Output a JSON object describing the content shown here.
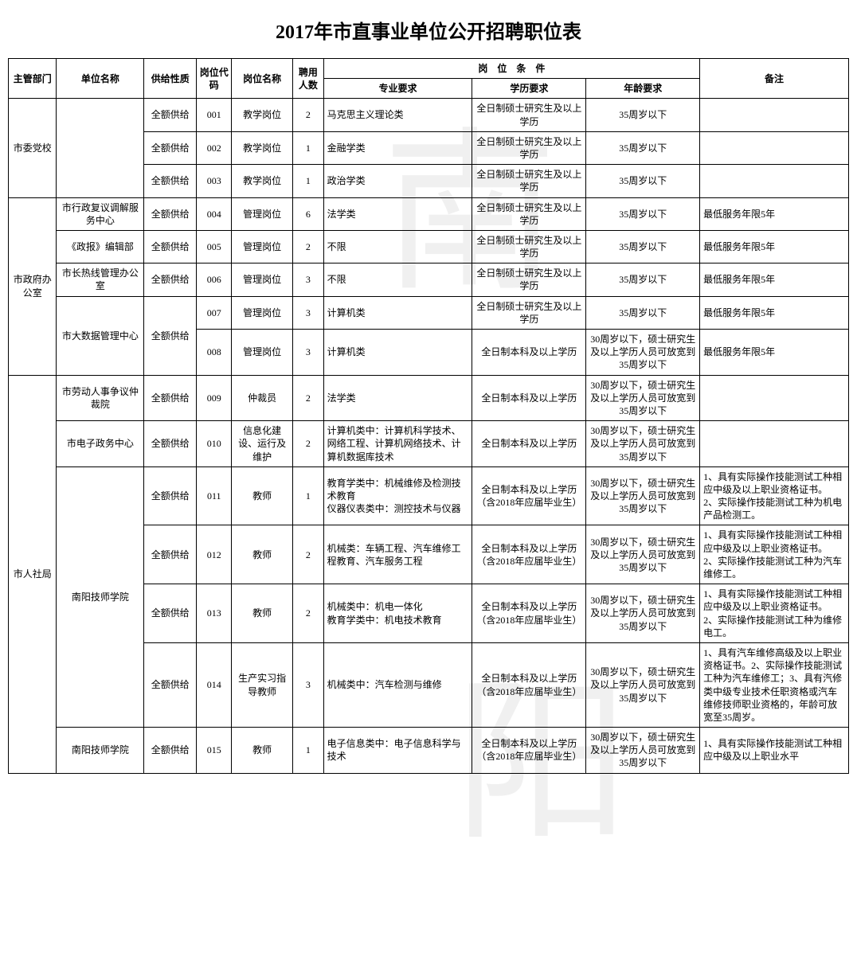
{
  "title": "2017年市直事业单位公开招聘职位表",
  "watermark": {
    "char1": "南",
    "char2": "阳"
  },
  "headers": {
    "dept": "主管部门",
    "unit": "单位名称",
    "supply": "供给性质",
    "code": "岗位代码",
    "pname": "岗位名称",
    "count": "聘用人数",
    "cond_group": "岗　位　条　件",
    "major": "专业要求",
    "edu": "学历要求",
    "age": "年龄要求",
    "note": "备注"
  },
  "groups": [
    {
      "dept": "市委党校",
      "units": [
        {
          "unit": "",
          "rows": [
            {
              "supply": "全额供给",
              "code": "001",
              "pname": "教学岗位",
              "count": "2",
              "major": "马克思主义理论类",
              "edu": "全日制硕士研究生及以上学历",
              "age": "35周岁以下",
              "note": ""
            },
            {
              "supply": "全额供给",
              "code": "002",
              "pname": "教学岗位",
              "count": "1",
              "major": "金融学类",
              "edu": "全日制硕士研究生及以上学历",
              "age": "35周岁以下",
              "note": ""
            },
            {
              "supply": "全额供给",
              "code": "003",
              "pname": "教学岗位",
              "count": "1",
              "major": "政治学类",
              "edu": "全日制硕士研究生及以上学历",
              "age": "35周岁以下",
              "note": ""
            }
          ]
        }
      ]
    },
    {
      "dept": "市政府办公室",
      "units": [
        {
          "unit": "市行政复议调解服务中心",
          "rows": [
            {
              "supply": "全额供给",
              "code": "004",
              "pname": "管理岗位",
              "count": "6",
              "major": "法学类",
              "edu": "全日制硕士研究生及以上学历",
              "age": "35周岁以下",
              "note": "最低服务年限5年"
            }
          ]
        },
        {
          "unit": "《政报》编辑部",
          "rows": [
            {
              "supply": "全额供给",
              "code": "005",
              "pname": "管理岗位",
              "count": "2",
              "major": "不限",
              "edu": "全日制硕士研究生及以上学历",
              "age": "35周岁以下",
              "note": "最低服务年限5年"
            }
          ]
        },
        {
          "unit": "市长热线管理办公室",
          "rows": [
            {
              "supply": "全额供给",
              "code": "006",
              "pname": "管理岗位",
              "count": "3",
              "major": "不限",
              "edu": "全日制硕士研究生及以上学历",
              "age": "35周岁以下",
              "note": "最低服务年限5年"
            }
          ]
        },
        {
          "unit": "市大数据管理中心",
          "supply_merged": "全额供给",
          "rows": [
            {
              "supply": "",
              "code": "007",
              "pname": "管理岗位",
              "count": "3",
              "major": "计算机类",
              "edu": "全日制硕士研究生及以上学历",
              "age": "35周岁以下",
              "note": "最低服务年限5年"
            },
            {
              "supply": "",
              "code": "008",
              "pname": "管理岗位",
              "count": "3",
              "major": "计算机类",
              "edu": "全日制本科及以上学历",
              "age": "30周岁以下，硕士研究生及以上学历人员可放宽到35周岁以下",
              "note": "最低服务年限5年"
            }
          ]
        }
      ]
    },
    {
      "dept": "市人社局",
      "units": [
        {
          "unit": "市劳动人事争议仲裁院",
          "rows": [
            {
              "supply": "全额供给",
              "code": "009",
              "pname": "仲裁员",
              "count": "2",
              "major": "法学类",
              "edu": "全日制本科及以上学历",
              "age": "30周岁以下，硕士研究生及以上学历人员可放宽到35周岁以下",
              "note": ""
            }
          ]
        },
        {
          "unit": "市电子政务中心",
          "rows": [
            {
              "supply": "全额供给",
              "code": "010",
              "pname": "信息化建设、运行及维护",
              "count": "2",
              "major": "计算机类中：计算机科学技术、网络工程、计算机网络技术、计算机数据库技术",
              "edu": "全日制本科及以上学历",
              "age": "30周岁以下，硕士研究生及以上学历人员可放宽到35周岁以下",
              "note": ""
            }
          ]
        },
        {
          "unit": "南阳技师学院",
          "rows": [
            {
              "supply": "全额供给",
              "code": "011",
              "pname": "教师",
              "count": "1",
              "major": "教育学类中：机械维修及检测技术教育\n仪器仪表类中：测控技术与仪器",
              "edu": "全日制本科及以上学历（含2018年应届毕业生）",
              "age": "30周岁以下，硕士研究生及以上学历人员可放宽到35周岁以下",
              "note": "1、具有实际操作技能测试工种相应中级及以上职业资格证书。\n2、实际操作技能测试工种为机电产品检测工。"
            },
            {
              "supply": "全额供给",
              "code": "012",
              "pname": "教师",
              "count": "2",
              "major": "机械类：车辆工程、汽车维修工程教育、汽车服务工程",
              "edu": "全日制本科及以上学历（含2018年应届毕业生）",
              "age": "30周岁以下，硕士研究生及以上学历人员可放宽到35周岁以下",
              "note": "1、具有实际操作技能测试工种相应中级及以上职业资格证书。\n2、实际操作技能测试工种为汽车维修工。"
            },
            {
              "supply": "全额供给",
              "code": "013",
              "pname": "教师",
              "count": "2",
              "major": "机械类中：机电一体化\n教育学类中：机电技术教育",
              "edu": "全日制本科及以上学历（含2018年应届毕业生）",
              "age": "30周岁以下，硕士研究生及以上学历人员可放宽到35周岁以下",
              "note": "1、具有实际操作技能测试工种相应中级及以上职业资格证书。\n2、实际操作技能测试工种为维修电工。"
            },
            {
              "supply": "全额供给",
              "code": "014",
              "pname": "生产实习指导教师",
              "count": "3",
              "major": "机械类中：汽车检测与维修",
              "edu": "全日制本科及以上学历（含2018年应届毕业生）",
              "age": "30周岁以下，硕士研究生及以上学历人员可放宽到35周岁以下",
              "note": "1、具有汽车维修高级及以上职业资格证书。2、实际操作技能测试工种为汽车维修工；3、具有汽修类中级专业技术任职资格或汽车维修技师职业资格的，年龄可放宽至35周岁。"
            }
          ]
        },
        {
          "unit": "南阳技师学院",
          "rows": [
            {
              "supply": "全额供给",
              "code": "015",
              "pname": "教师",
              "count": "1",
              "major": "电子信息类中：电子信息科学与技术",
              "edu": "全日制本科及以上学历（含2018年应届毕业生）",
              "age": "30周岁以下，硕士研究生及以上学历人员可放宽到35周岁以下",
              "note": "1、具有实际操作技能测试工种相应中级及以上职业水平"
            }
          ]
        }
      ]
    }
  ]
}
